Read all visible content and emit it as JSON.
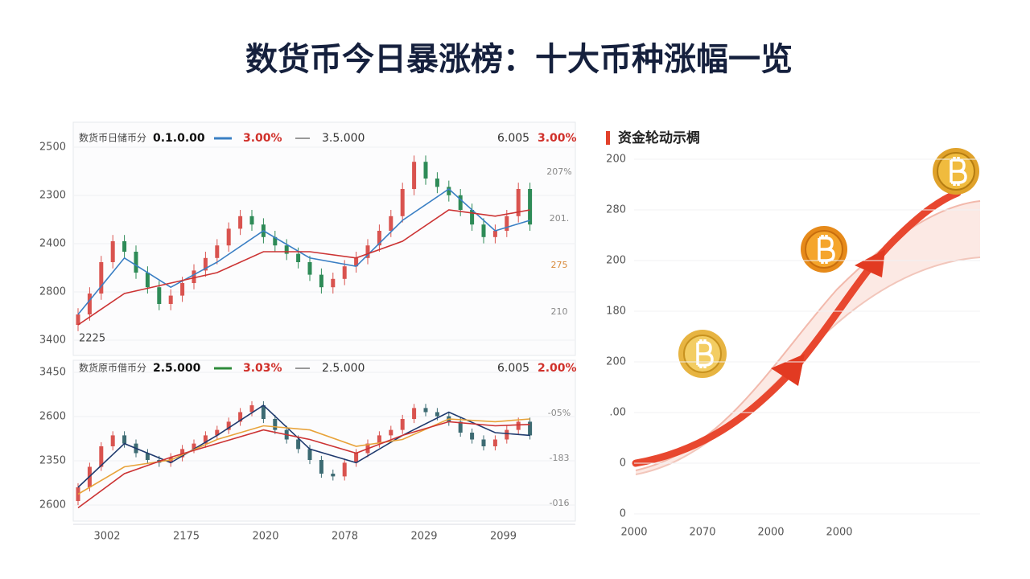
{
  "title": "数货币今日暴涨榜：十大币种涨幅一览",
  "chart_data": [
    {
      "type": "candlestick",
      "header": [
        "数货币日储币分",
        "0.1.0.00",
        "3.00%",
        "3.5.000",
        "6.005",
        "3.00%"
      ],
      "ylim": [
        0,
        100
      ],
      "y_labels": [
        "2500",
        "2300",
        "2400",
        "2800",
        "3400"
      ],
      "right_labels": [
        "207%",
        "201.",
        "275",
        "210"
      ],
      "corner_label": "2225",
      "up_color": "#d9534f",
      "down_color": "#2e8b57",
      "ohlc": [
        [
          10,
          18,
          7,
          15
        ],
        [
          15,
          28,
          12,
          25
        ],
        [
          25,
          43,
          22,
          40
        ],
        [
          40,
          53,
          37,
          50
        ],
        [
          50,
          53,
          42,
          45
        ],
        [
          45,
          48,
          32,
          35
        ],
        [
          35,
          38,
          25,
          28
        ],
        [
          28,
          31,
          17,
          20
        ],
        [
          20,
          27,
          17,
          24
        ],
        [
          24,
          33,
          21,
          30
        ],
        [
          30,
          39,
          27,
          36
        ],
        [
          36,
          45,
          33,
          42
        ],
        [
          42,
          51,
          39,
          48
        ],
        [
          48,
          59,
          45,
          56
        ],
        [
          56,
          65,
          53,
          62
        ],
        [
          62,
          65,
          55,
          58
        ],
        [
          58,
          61,
          49,
          52
        ],
        [
          52,
          55,
          45,
          48
        ],
        [
          48,
          51,
          41,
          44
        ],
        [
          44,
          47,
          37,
          40
        ],
        [
          40,
          43,
          31,
          34
        ],
        [
          34,
          37,
          25,
          28
        ],
        [
          28,
          35,
          25,
          32
        ],
        [
          32,
          41,
          29,
          38
        ],
        [
          38,
          45,
          35,
          42
        ],
        [
          42,
          51,
          39,
          48
        ],
        [
          48,
          58,
          45,
          55
        ],
        [
          55,
          65,
          52,
          62
        ],
        [
          62,
          78,
          59,
          75
        ],
        [
          75,
          91,
          72,
          88
        ],
        [
          88,
          91,
          77,
          80
        ],
        [
          80,
          83,
          73,
          76
        ],
        [
          76,
          79,
          69,
          72
        ],
        [
          72,
          75,
          62,
          65
        ],
        [
          65,
          68,
          55,
          58
        ],
        [
          58,
          61,
          49,
          52
        ],
        [
          52,
          58,
          49,
          55
        ],
        [
          55,
          65,
          52,
          62
        ],
        [
          62,
          78,
          59,
          75
        ],
        [
          75,
          78,
          55,
          58
        ]
      ],
      "lines": [
        {
          "color": "#3a7fc4",
          "x": [
            0,
            4,
            8,
            12,
            16,
            20,
            24,
            28,
            32,
            36,
            39
          ],
          "values": [
            15,
            42,
            28,
            40,
            55,
            42,
            38,
            60,
            75,
            55,
            60
          ]
        },
        {
          "color": "#cc3333",
          "x": [
            0,
            4,
            8,
            12,
            16,
            20,
            24,
            28,
            32,
            36,
            39
          ],
          "values": [
            10,
            25,
            30,
            35,
            45,
            45,
            42,
            50,
            65,
            62,
            65
          ]
        }
      ]
    },
    {
      "type": "candlestick",
      "header": [
        "数货原币借币分",
        "2.5.000",
        "3.03%",
        "2.5.000",
        "6.005",
        "2.00%"
      ],
      "ylim": [
        0,
        100
      ],
      "y_labels": [
        "3450",
        "2600",
        "2350",
        "2600"
      ],
      "right_labels": [
        "-05%",
        "-183",
        "-016"
      ],
      "categories": [
        "3002",
        "2175",
        "2020",
        "2078",
        "2029",
        "2099"
      ],
      "up_color": "#d9534f",
      "down_color": "#3d6b73",
      "ohlc": [
        [
          10,
          23,
          7,
          20
        ],
        [
          20,
          38,
          17,
          35
        ],
        [
          35,
          53,
          32,
          50
        ],
        [
          50,
          61,
          47,
          58
        ],
        [
          58,
          61,
          49,
          52
        ],
        [
          52,
          55,
          42,
          45
        ],
        [
          45,
          48,
          37,
          40
        ],
        [
          40,
          43,
          35,
          38
        ],
        [
          38,
          45,
          35,
          42
        ],
        [
          42,
          51,
          39,
          48
        ],
        [
          48,
          55,
          45,
          52
        ],
        [
          52,
          61,
          49,
          58
        ],
        [
          58,
          65,
          55,
          62
        ],
        [
          62,
          71,
          59,
          68
        ],
        [
          68,
          78,
          65,
          75
        ],
        [
          75,
          83,
          72,
          80
        ],
        [
          80,
          83,
          67,
          70
        ],
        [
          70,
          73,
          59,
          62
        ],
        [
          62,
          65,
          52,
          55
        ],
        [
          55,
          58,
          45,
          48
        ],
        [
          48,
          51,
          37,
          40
        ],
        [
          40,
          43,
          27,
          30
        ],
        [
          30,
          33,
          25,
          28
        ],
        [
          28,
          41,
          25,
          38
        ],
        [
          38,
          48,
          35,
          45
        ],
        [
          45,
          55,
          42,
          52
        ],
        [
          52,
          61,
          49,
          58
        ],
        [
          58,
          65,
          55,
          62
        ],
        [
          62,
          73,
          59,
          70
        ],
        [
          70,
          81,
          67,
          78
        ],
        [
          78,
          81,
          72,
          75
        ],
        [
          75,
          78,
          69,
          72
        ],
        [
          72,
          75,
          65,
          68
        ],
        [
          68,
          71,
          57,
          60
        ],
        [
          60,
          63,
          52,
          55
        ],
        [
          55,
          58,
          47,
          50
        ],
        [
          50,
          58,
          47,
          55
        ],
        [
          55,
          65,
          52,
          62
        ],
        [
          62,
          71,
          59,
          68
        ],
        [
          68,
          71,
          55,
          58
        ]
      ],
      "lines": [
        {
          "color": "#1f3a6e",
          "x": [
            0,
            4,
            8,
            12,
            16,
            20,
            24,
            28,
            32,
            36,
            39
          ],
          "values": [
            20,
            52,
            38,
            58,
            80,
            48,
            38,
            58,
            75,
            60,
            58
          ]
        },
        {
          "color": "#e8a33a",
          "x": [
            0,
            4,
            8,
            12,
            16,
            20,
            24,
            28,
            32,
            36,
            39
          ],
          "values": [
            15,
            35,
            40,
            55,
            65,
            62,
            50,
            55,
            70,
            68,
            70
          ]
        },
        {
          "color": "#cc3333",
          "x": [
            0,
            4,
            8,
            12,
            16,
            20,
            24,
            28,
            32,
            36,
            39
          ],
          "values": [
            5,
            30,
            42,
            52,
            62,
            55,
            45,
            58,
            68,
            65,
            66
          ]
        }
      ]
    },
    {
      "type": "flow",
      "title": "资金轮动示椆",
      "y_labels": [
        "200",
        "280",
        "200",
        "180",
        "200",
        ".00",
        "0",
        "0"
      ],
      "categories": [
        "2000",
        "2070",
        "2000",
        "2000"
      ]
    }
  ]
}
